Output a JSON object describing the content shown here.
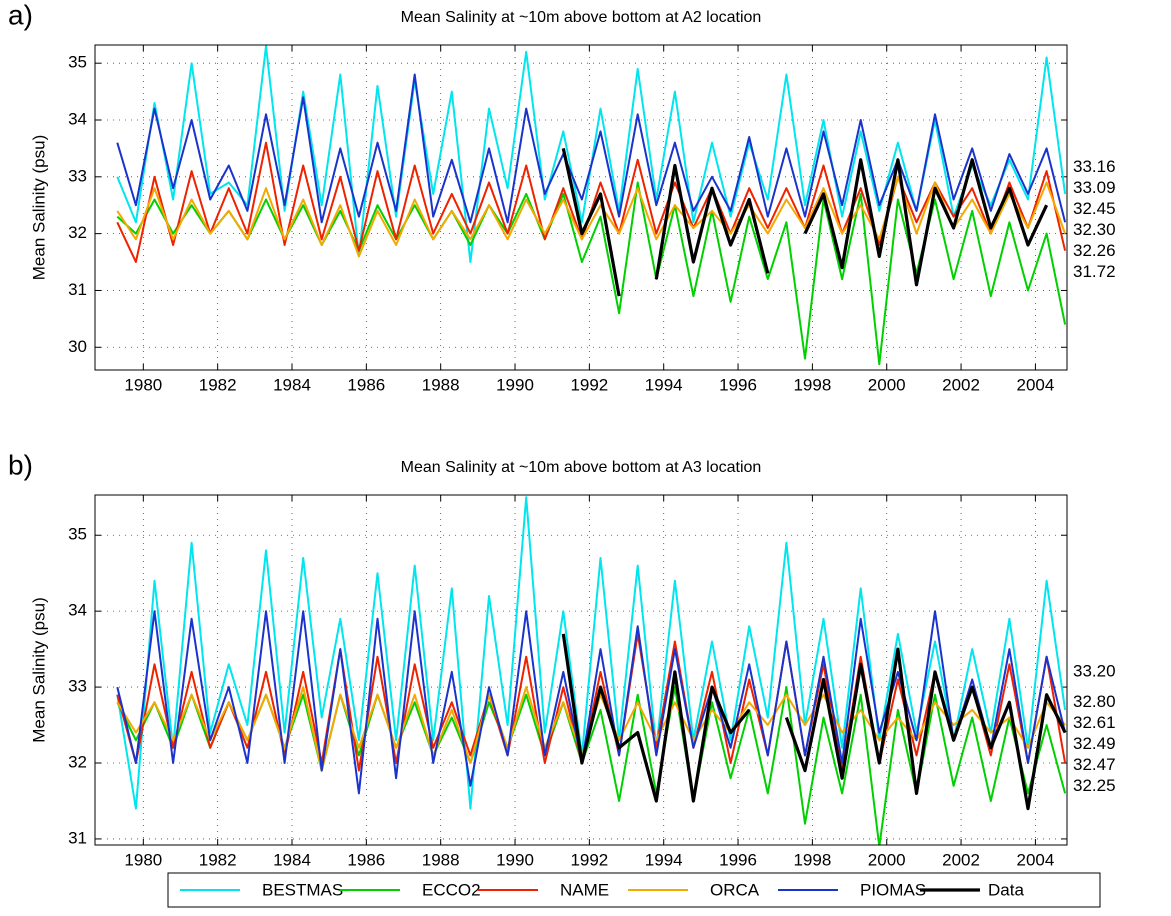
{
  "chart_data": [
    {
      "type": "line",
      "panel_label": "a)",
      "title": "Mean Salinity at ~10m above bottom at A2 location",
      "y_label": "Mean Salinity (psu)",
      "xlim": [
        1978.7,
        2004.85
      ],
      "xticks": [
        1980,
        1982,
        1984,
        1986,
        1988,
        1990,
        1992,
        1994,
        1996,
        1998,
        2000,
        2002,
        2004
      ],
      "ylim": [
        29.6,
        35.32
      ],
      "yticks": [
        30,
        31,
        32,
        33,
        34,
        35
      ],
      "grid": true,
      "x": [
        1979.3,
        1979.8,
        1980.3,
        1980.8,
        1981.3,
        1981.8,
        1982.3,
        1982.8,
        1983.3,
        1983.8,
        1984.3,
        1984.8,
        1985.3,
        1985.8,
        1986.3,
        1986.8,
        1987.3,
        1987.8,
        1988.3,
        1988.8,
        1989.3,
        1989.8,
        1990.3,
        1990.8,
        1991.3,
        1991.8,
        1992.3,
        1992.8,
        1993.3,
        1993.8,
        1994.3,
        1994.8,
        1995.3,
        1995.8,
        1996.3,
        1996.8,
        1997.3,
        1997.8,
        1998.3,
        1998.8,
        1999.3,
        1999.8,
        2000.3,
        2000.8,
        2001.3,
        2001.8,
        2002.3,
        2002.8,
        2003.3,
        2003.8,
        2004.3,
        2004.8
      ],
      "series": [
        {
          "name": "BESTMAS",
          "color": "#00e5ee",
          "end_label": "33.16",
          "values": [
            33.0,
            32.2,
            34.3,
            32.6,
            35.0,
            32.7,
            32.9,
            32.5,
            35.3,
            32.4,
            34.5,
            32.5,
            34.8,
            31.6,
            34.6,
            32.3,
            34.7,
            32.7,
            34.5,
            31.5,
            34.2,
            32.8,
            35.2,
            32.6,
            33.8,
            32.2,
            34.2,
            32.4,
            34.9,
            32.6,
            34.5,
            32.2,
            33.6,
            32.3,
            33.6,
            32.6,
            34.8,
            32.5,
            34.0,
            32.3,
            33.8,
            32.4,
            33.6,
            32.4,
            34.0,
            32.3,
            33.2,
            32.5,
            33.3,
            32.6,
            35.1,
            32.7
          ]
        },
        {
          "name": "ECCO2",
          "color": "#00d000",
          "end_label": "31.72",
          "values": [
            32.3,
            32.0,
            32.6,
            32.0,
            32.5,
            32.0,
            32.4,
            31.9,
            32.6,
            31.9,
            32.5,
            31.8,
            32.4,
            31.7,
            32.5,
            31.9,
            32.5,
            31.9,
            32.4,
            31.8,
            32.5,
            32.0,
            32.7,
            31.9,
            32.7,
            31.5,
            32.3,
            30.6,
            32.9,
            31.2,
            32.5,
            30.9,
            32.4,
            30.8,
            32.3,
            31.2,
            32.2,
            29.8,
            32.6,
            31.2,
            32.7,
            29.7,
            32.6,
            31.3,
            32.6,
            31.2,
            32.4,
            30.9,
            32.2,
            31.0,
            32.0,
            30.4
          ]
        },
        {
          "name": "NAME",
          "color": "#ee2200",
          "end_label": "32.45",
          "values": [
            32.2,
            31.5,
            33.0,
            31.8,
            33.1,
            32.0,
            32.8,
            32.0,
            33.6,
            31.8,
            33.2,
            31.9,
            33.0,
            31.7,
            33.1,
            31.9,
            33.2,
            32.0,
            32.7,
            32.0,
            32.9,
            32.0,
            33.2,
            31.9,
            32.8,
            31.9,
            32.9,
            32.0,
            33.3,
            32.0,
            32.9,
            32.1,
            32.8,
            32.0,
            32.8,
            32.1,
            32.8,
            32.1,
            33.2,
            32.0,
            32.8,
            31.8,
            33.0,
            32.2,
            32.9,
            32.3,
            32.8,
            32.0,
            32.9,
            32.1,
            33.1,
            31.7
          ]
        },
        {
          "name": "ORCA",
          "color": "#f5a800",
          "end_label": "32.30",
          "values": [
            32.4,
            31.9,
            32.8,
            31.9,
            32.6,
            32.0,
            32.4,
            31.9,
            32.8,
            31.9,
            32.6,
            31.8,
            32.5,
            31.6,
            32.4,
            31.8,
            32.6,
            31.9,
            32.4,
            31.9,
            32.5,
            31.9,
            32.6,
            32.0,
            32.6,
            31.9,
            32.5,
            32.0,
            32.8,
            31.9,
            32.5,
            32.1,
            32.4,
            32.0,
            32.5,
            32.0,
            32.6,
            32.1,
            32.8,
            32.0,
            32.5,
            31.9,
            33.0,
            32.0,
            32.9,
            32.1,
            32.6,
            32.0,
            32.7,
            32.1,
            32.9,
            32.0
          ]
        },
        {
          "name": "PIOMAS",
          "color": "#1a33cc",
          "end_label": "33.09",
          "values": [
            33.6,
            32.5,
            34.2,
            32.8,
            34.0,
            32.6,
            33.2,
            32.4,
            34.1,
            32.5,
            34.4,
            32.2,
            33.5,
            32.3,
            33.6,
            32.4,
            34.8,
            32.3,
            33.3,
            32.2,
            33.5,
            32.2,
            34.2,
            32.7,
            33.4,
            32.6,
            33.8,
            32.3,
            34.1,
            32.5,
            33.6,
            32.4,
            33.0,
            32.4,
            33.7,
            32.3,
            33.5,
            32.3,
            33.8,
            32.5,
            34.0,
            32.5,
            33.3,
            32.4,
            34.1,
            32.6,
            33.5,
            32.4,
            33.4,
            32.7,
            33.5,
            32.2
          ]
        },
        {
          "name": "Data",
          "color": "#000000",
          "end_label": "32.26",
          "values": [
            null,
            null,
            null,
            null,
            null,
            null,
            null,
            null,
            null,
            null,
            null,
            null,
            null,
            null,
            null,
            null,
            null,
            null,
            null,
            null,
            null,
            null,
            null,
            null,
            33.5,
            32.0,
            32.7,
            30.9,
            null,
            31.2,
            33.2,
            31.5,
            32.8,
            31.8,
            32.6,
            31.3,
            null,
            32.0,
            32.7,
            31.4,
            33.3,
            31.6,
            33.3,
            31.1,
            32.8,
            32.1,
            33.3,
            32.1,
            32.8,
            31.8,
            32.5,
            null
          ]
        }
      ]
    },
    {
      "type": "line",
      "panel_label": "b)",
      "title": "Mean Salinity at ~10m above bottom at A3 location",
      "y_label": "Mean Salinity (psu)",
      "xlim": [
        1978.7,
        2004.85
      ],
      "xticks": [
        1980,
        1982,
        1984,
        1986,
        1988,
        1990,
        1992,
        1994,
        1996,
        1998,
        2000,
        2002,
        2004
      ],
      "ylim": [
        30.92,
        35.53
      ],
      "yticks": [
        31,
        32,
        33,
        34,
        35
      ],
      "grid": true,
      "x": [
        1979.3,
        1979.8,
        1980.3,
        1980.8,
        1981.3,
        1981.8,
        1982.3,
        1982.8,
        1983.3,
        1983.8,
        1984.3,
        1984.8,
        1985.3,
        1985.8,
        1986.3,
        1986.8,
        1987.3,
        1987.8,
        1988.3,
        1988.8,
        1989.3,
        1989.8,
        1990.3,
        1990.8,
        1991.3,
        1991.8,
        1992.3,
        1992.8,
        1993.3,
        1993.8,
        1994.3,
        1994.8,
        1995.3,
        1995.8,
        1996.3,
        1996.8,
        1997.3,
        1997.8,
        1998.3,
        1998.8,
        1999.3,
        1999.8,
        2000.3,
        2000.8,
        2001.3,
        2001.8,
        2002.3,
        2002.8,
        2003.3,
        2003.8,
        2004.3,
        2004.8
      ],
      "series": [
        {
          "name": "BESTMAS",
          "color": "#00e5ee",
          "end_label": "33.20",
          "values": [
            32.9,
            31.4,
            34.4,
            32.2,
            34.9,
            32.4,
            33.3,
            32.5,
            34.8,
            32.4,
            34.7,
            32.6,
            33.9,
            32.3,
            34.5,
            32.3,
            34.6,
            32.3,
            34.3,
            31.4,
            34.2,
            32.5,
            35.5,
            32.4,
            34.0,
            32.1,
            34.7,
            32.3,
            34.6,
            32.2,
            34.4,
            32.3,
            33.6,
            32.3,
            33.8,
            32.6,
            34.9,
            32.5,
            33.9,
            32.2,
            34.3,
            32.3,
            33.7,
            32.4,
            33.6,
            32.3,
            33.5,
            32.4,
            33.9,
            32.2,
            34.4,
            32.7
          ]
        },
        {
          "name": "ECCO2",
          "color": "#00d000",
          "end_label": "32.25",
          "values": [
            32.8,
            32.3,
            32.8,
            32.2,
            32.9,
            32.2,
            32.8,
            32.3,
            32.9,
            32.2,
            32.9,
            31.9,
            32.9,
            32.1,
            32.9,
            32.2,
            32.8,
            32.1,
            32.6,
            32.0,
            32.8,
            32.2,
            32.9,
            32.1,
            32.8,
            32.0,
            32.7,
            31.5,
            32.9,
            31.6,
            33.0,
            31.5,
            32.8,
            31.8,
            32.7,
            31.6,
            33.0,
            31.2,
            32.6,
            31.6,
            32.9,
            30.9,
            32.7,
            31.6,
            32.9,
            31.7,
            32.6,
            31.5,
            32.6,
            31.6,
            32.5,
            31.6
          ]
        },
        {
          "name": "NAME",
          "color": "#ee2200",
          "end_label": "32.61",
          "values": [
            32.9,
            32.0,
            33.3,
            32.2,
            33.2,
            32.2,
            32.8,
            32.2,
            33.2,
            32.1,
            33.2,
            32.0,
            33.5,
            31.9,
            33.4,
            32.0,
            33.3,
            32.2,
            32.8,
            32.1,
            32.9,
            32.1,
            33.4,
            32.0,
            33.0,
            32.0,
            33.2,
            32.1,
            33.7,
            32.2,
            33.6,
            32.2,
            33.2,
            32.0,
            33.1,
            32.1,
            33.6,
            32.1,
            33.3,
            31.9,
            33.4,
            32.0,
            33.1,
            32.1,
            33.2,
            32.3,
            33.0,
            32.1,
            33.3,
            32.0,
            33.4,
            32.0
          ]
        },
        {
          "name": "ORCA",
          "color": "#f5a800",
          "end_label": "32.47",
          "values": [
            32.8,
            32.4,
            32.8,
            32.3,
            32.9,
            32.3,
            32.8,
            32.3,
            32.9,
            32.2,
            33.0,
            31.9,
            32.9,
            32.2,
            32.9,
            32.2,
            32.9,
            32.1,
            32.7,
            32.0,
            32.9,
            32.2,
            33.0,
            32.2,
            32.8,
            32.1,
            32.9,
            32.3,
            32.8,
            32.3,
            32.8,
            32.3,
            32.7,
            32.4,
            32.8,
            32.5,
            32.9,
            32.5,
            32.9,
            32.4,
            32.7,
            32.3,
            32.6,
            32.3,
            32.8,
            32.5,
            32.7,
            32.4,
            32.6,
            32.2,
            32.8,
            32.5
          ]
        },
        {
          "name": "PIOMAS",
          "color": "#1a33cc",
          "end_label": "32.80",
          "values": [
            33.0,
            32.0,
            34.0,
            32.0,
            33.9,
            32.3,
            33.0,
            32.0,
            34.0,
            32.0,
            34.0,
            31.9,
            33.5,
            31.6,
            33.9,
            31.8,
            34.0,
            32.0,
            33.2,
            31.7,
            33.0,
            32.1,
            34.0,
            32.1,
            33.2,
            32.0,
            33.5,
            32.1,
            33.8,
            32.1,
            33.5,
            32.2,
            33.0,
            32.2,
            33.3,
            32.1,
            33.6,
            32.1,
            33.4,
            32.0,
            33.9,
            32.4,
            33.2,
            32.3,
            34.0,
            32.3,
            33.1,
            32.2,
            33.5,
            32.0,
            33.4,
            32.4
          ]
        },
        {
          "name": "Data",
          "color": "#000000",
          "end_label": "32.49",
          "values": [
            null,
            null,
            null,
            null,
            null,
            null,
            null,
            null,
            null,
            null,
            null,
            null,
            null,
            null,
            null,
            null,
            null,
            null,
            null,
            null,
            null,
            null,
            null,
            null,
            33.7,
            32.0,
            33.0,
            32.2,
            32.4,
            31.5,
            33.2,
            31.5,
            33.0,
            32.4,
            32.7,
            null,
            32.6,
            31.9,
            33.1,
            31.8,
            33.3,
            32.0,
            33.5,
            31.6,
            33.2,
            32.3,
            33.0,
            32.2,
            32.8,
            31.4,
            32.9,
            32.4
          ]
        }
      ]
    }
  ]
}
